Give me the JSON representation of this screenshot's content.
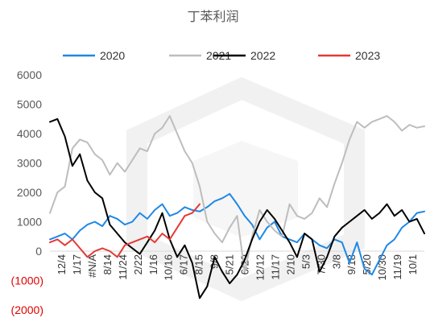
{
  "chart_data": {
    "type": "line",
    "title": "丁苯利润",
    "xlabel": "",
    "ylabel": "",
    "ylim": [
      -2000,
      6000
    ],
    "y_ticks": [
      {
        "value": 6000,
        "label": "6000",
        "color": "#595959"
      },
      {
        "value": 5000,
        "label": "5000",
        "color": "#595959"
      },
      {
        "value": 4000,
        "label": "4000",
        "color": "#595959"
      },
      {
        "value": 3000,
        "label": "3000",
        "color": "#595959"
      },
      {
        "value": 2000,
        "label": "2000",
        "color": "#595959"
      },
      {
        "value": 1000,
        "label": "1000",
        "color": "#595959"
      },
      {
        "value": 0,
        "label": "0",
        "color": "#595959"
      },
      {
        "value": -1000,
        "label": "(1000)",
        "color": "#e00000"
      },
      {
        "value": -2000,
        "label": "(2000)",
        "color": "#e00000"
      }
    ],
    "x_tick_labels": [
      "12/4",
      "1/17",
      "#N/A",
      "8/14",
      "11/24",
      "2/22",
      "1/16",
      "10/16",
      "6/17",
      "8/15",
      "9/8",
      "5/21",
      "6/29",
      "12/12",
      "11/17",
      "2/10",
      "5/3",
      "7/30",
      "3/8",
      "9/18",
      "5/20",
      "10/30",
      "11/19",
      "10/1"
    ],
    "x_range": [
      0,
      100
    ],
    "legend_position": "top",
    "grid": false,
    "series": [
      {
        "name": "2020",
        "color": "#1e88e5",
        "x": [
          0,
          2,
          4,
          6,
          8,
          10,
          12,
          14,
          16,
          18,
          20,
          22,
          24,
          26,
          28,
          30,
          32,
          34,
          36,
          38,
          40,
          42,
          44,
          46,
          48,
          50,
          52,
          54,
          56,
          58,
          60,
          62,
          64,
          66,
          68,
          70,
          72,
          74,
          76,
          78,
          80,
          82,
          84,
          86,
          88,
          90,
          92,
          94,
          96,
          98,
          100
        ],
        "y": [
          400,
          500,
          600,
          400,
          700,
          900,
          1000,
          850,
          1200,
          1100,
          900,
          1000,
          1300,
          1100,
          1400,
          1600,
          1200,
          1300,
          1500,
          1400,
          1350,
          1500,
          1700,
          1800,
          1950,
          1600,
          1200,
          900,
          400,
          800,
          1000,
          500,
          400,
          300,
          600,
          400,
          200,
          100,
          400,
          300,
          -400,
          300,
          -600,
          -800,
          -300,
          200,
          400,
          800,
          1000,
          1300,
          1350
        ]
      },
      {
        "name": "2021",
        "color": "#bdbdbd",
        "x": [
          0,
          2,
          4,
          6,
          8,
          10,
          12,
          14,
          16,
          18,
          20,
          22,
          24,
          26,
          28,
          30,
          32,
          34,
          36,
          38,
          40,
          42,
          44,
          46,
          48,
          50,
          52,
          54,
          56,
          58,
          60,
          62,
          64,
          66,
          68,
          70,
          72,
          74,
          76,
          78,
          80,
          82,
          84,
          86,
          88,
          90,
          92,
          94,
          96,
          98,
          100
        ],
        "y": [
          1300,
          2000,
          2200,
          3500,
          3800,
          3700,
          3300,
          3100,
          2600,
          3000,
          2700,
          3100,
          3500,
          3400,
          4000,
          4200,
          4600,
          4000,
          3400,
          3000,
          2200,
          1000,
          600,
          300,
          800,
          1200,
          -700,
          500,
          1400,
          1000,
          700,
          500,
          1600,
          1200,
          1100,
          1300,
          1800,
          1500,
          2300,
          3000,
          3800,
          4400,
          4200,
          4400,
          4500,
          4600,
          4400,
          4100,
          4300,
          4200,
          4250
        ]
      },
      {
        "name": "2022",
        "color": "#000000",
        "x": [
          0,
          2,
          4,
          6,
          8,
          10,
          12,
          14,
          16,
          18,
          20,
          22,
          24,
          26,
          28,
          30,
          32,
          34,
          36,
          38,
          40,
          42,
          44,
          46,
          48,
          50,
          52,
          54,
          56,
          58,
          60,
          62,
          64,
          66,
          68,
          70,
          72,
          74,
          76,
          78,
          80,
          82,
          84,
          86,
          88,
          90,
          92,
          94,
          96,
          98,
          100
        ],
        "y": [
          4400,
          4500,
          3900,
          2900,
          3300,
          2400,
          2000,
          1800,
          900,
          600,
          300,
          100,
          -100,
          300,
          700,
          1300,
          400,
          -200,
          200,
          -400,
          -1600,
          -1200,
          -200,
          -700,
          -1100,
          -800,
          -300,
          400,
          1000,
          1400,
          1100,
          700,
          300,
          -200,
          600,
          400,
          -700,
          -200,
          500,
          800,
          1000,
          1200,
          1400,
          1100,
          1300,
          1600,
          1200,
          1400,
          1000,
          1100,
          600
        ]
      },
      {
        "name": "2023",
        "color": "#e53935",
        "x": [
          0,
          2,
          4,
          6,
          8,
          10,
          12,
          14,
          16,
          18,
          20,
          22,
          24,
          26,
          28,
          30,
          32,
          34,
          36,
          38,
          40
        ],
        "y": [
          300,
          400,
          200,
          400,
          100,
          -200,
          0,
          100,
          0,
          -200,
          200,
          300,
          400,
          500,
          300,
          600,
          400,
          800,
          1200,
          1300,
          1600
        ]
      }
    ]
  }
}
